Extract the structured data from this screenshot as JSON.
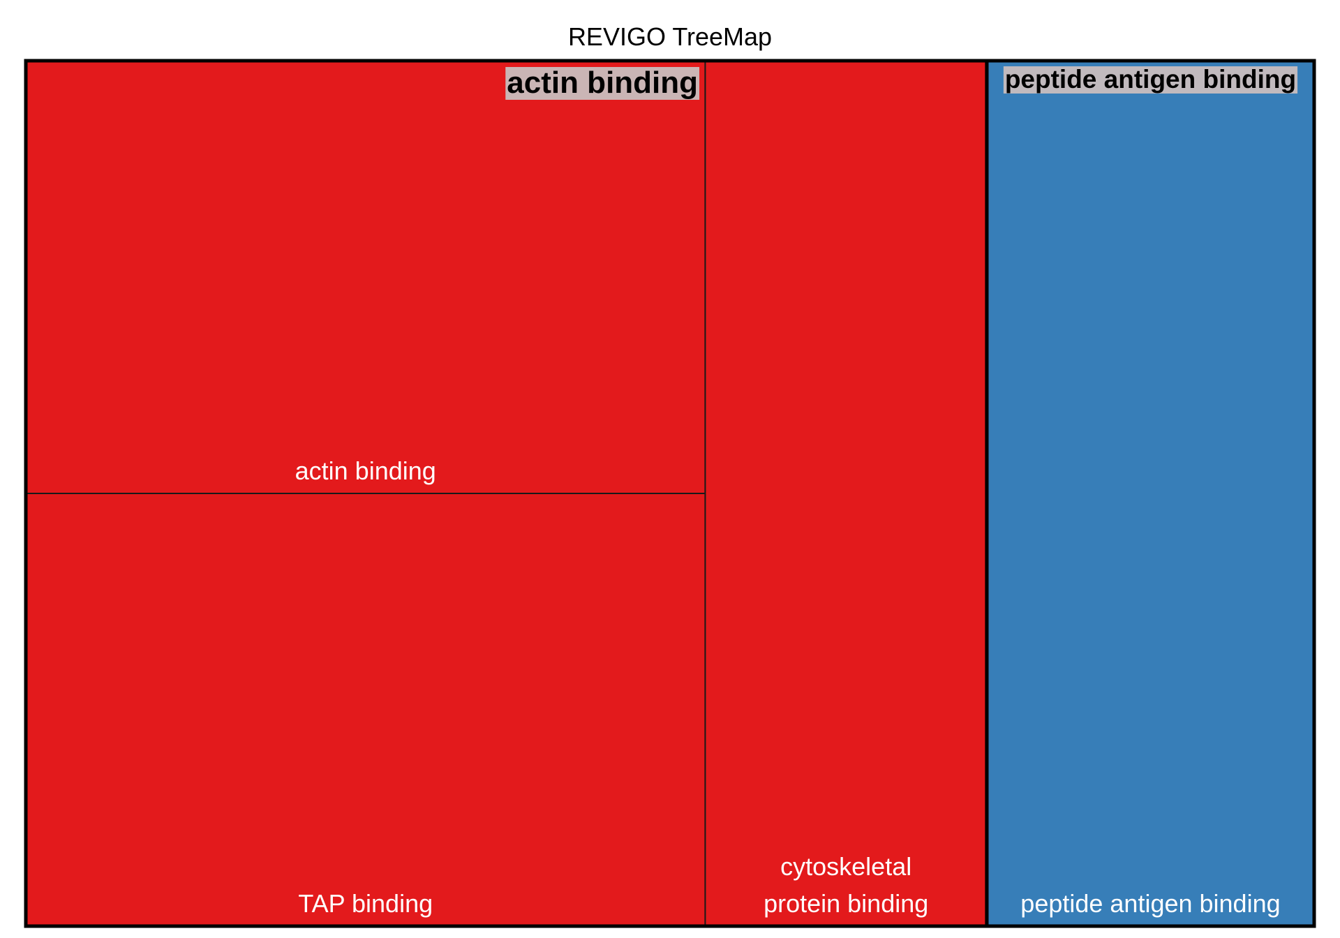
{
  "chart_data": {
    "type": "treemap",
    "title": "REVIGO TreeMap",
    "groups": [
      {
        "name": "actin binding",
        "color": "#E31A1C",
        "children": [
          {
            "name": "actin binding",
            "label_lines": [
              "actin binding"
            ],
            "value": 19.3
          },
          {
            "name": "TAP binding",
            "label_lines": [
              "TAP binding"
            ],
            "value": 19.3
          },
          {
            "name": "cytoskeletal protein binding",
            "label_lines": [
              "cytoskeletal",
              "protein binding"
            ],
            "value": 16.0
          }
        ]
      },
      {
        "name": "peptide antigen binding",
        "color": "#377EB8",
        "children": [
          {
            "name": "peptide antigen binding",
            "label_lines": [
              "peptide antigen binding"
            ],
            "value": 18.6
          }
        ]
      }
    ]
  }
}
